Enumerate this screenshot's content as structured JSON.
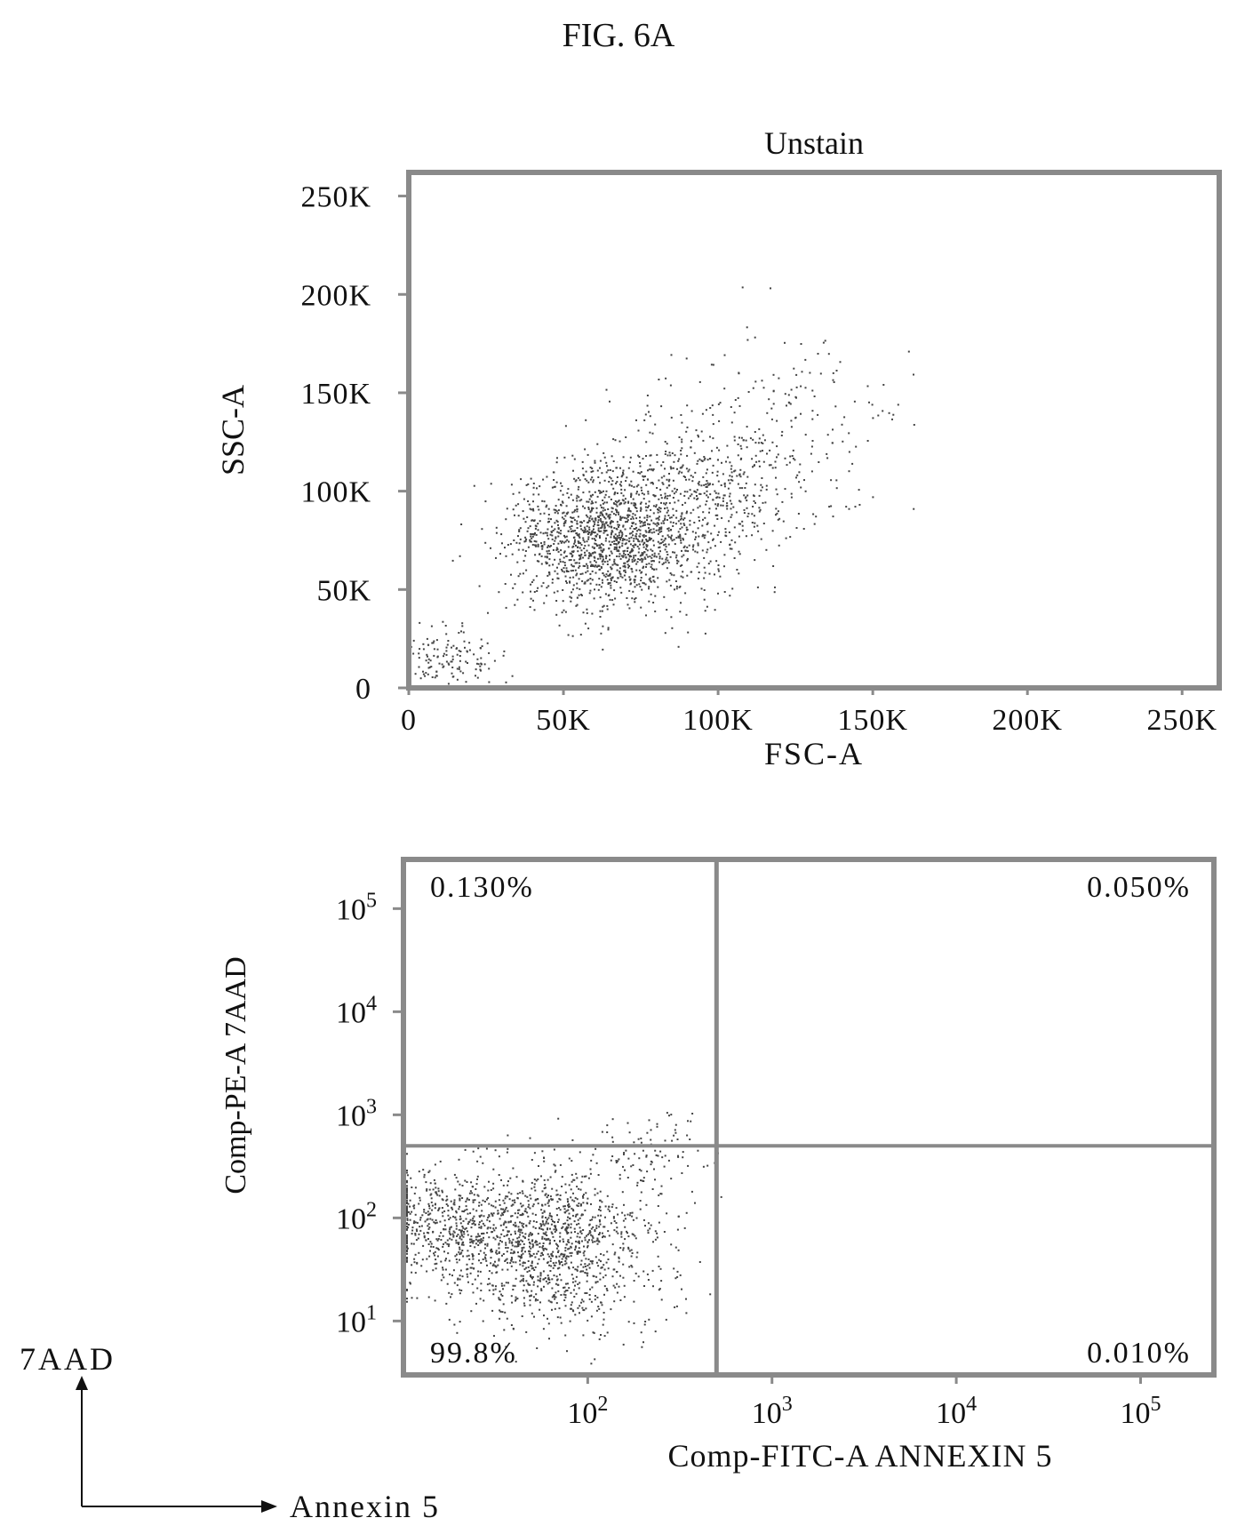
{
  "figure_title": "FIG. 6A",
  "colors": {
    "ink": "#111111",
    "dots": "#444444",
    "frame": "#8a8a8a"
  },
  "chart_data": [
    {
      "type": "scatter",
      "title": "Unstain",
      "xlabel": "FSC-A",
      "ylabel": "SSC-A",
      "xlim": [
        0,
        262000
      ],
      "ylim": [
        0,
        262000
      ],
      "x_ticks": [
        0,
        50000,
        100000,
        150000,
        200000,
        250000
      ],
      "x_tick_labels": [
        "0",
        "50K",
        "100K",
        "150K",
        "200K",
        "250K"
      ],
      "y_ticks": [
        0,
        50000,
        100000,
        150000,
        200000,
        250000
      ],
      "y_tick_labels": [
        "0",
        "50K",
        "100K",
        "150K",
        "200K",
        "250K"
      ],
      "grid": false,
      "series": [
        {
          "clusters": [
            {
              "cx": 65000,
              "cy": 75000,
              "sx": 17000,
              "sy": 17000,
              "n": 1500
            },
            {
              "cx": 95000,
              "cy": 105000,
              "sx": 20000,
              "sy": 17000,
              "n": 500
            },
            {
              "cx": 12000,
              "cy": 14000,
              "sx": 9000,
              "sy": 9000,
              "n": 150
            },
            {
              "cx": 120000,
              "cy": 145000,
              "sx": 22000,
              "sy": 22000,
              "n": 140
            }
          ]
        }
      ]
    },
    {
      "type": "scatter",
      "xlabel": "Comp-FITC-A ANNEXIN 5",
      "ylabel": "Comp-PE-A 7AAD",
      "xscale": "log",
      "yscale": "log",
      "xlim": [
        10,
        250000
      ],
      "ylim": [
        3,
        300000
      ],
      "x_ticks": [
        100,
        1000,
        10000,
        100000
      ],
      "y_ticks": [
        10,
        100,
        1000,
        10000,
        100000
      ],
      "tick_base": "10",
      "tick_exponents": [
        "2",
        "3",
        "4",
        "5"
      ],
      "y_tick_exponents": [
        "1",
        "2",
        "3",
        "4",
        "5"
      ],
      "grid": false,
      "quadrant_gate": {
        "x": 500,
        "y": 500
      },
      "quadrants": [
        {
          "position": "top-left",
          "label": "0.130%"
        },
        {
          "position": "top-right",
          "label": "0.050%"
        },
        {
          "position": "bottom-left",
          "label": "99.8%"
        },
        {
          "position": "bottom-right",
          "label": "0.010%"
        }
      ],
      "series": [
        {
          "log_clusters": [
            {
              "cx": 1.75,
              "cy": 1.75,
              "sx": 0.32,
              "sy": 0.38,
              "n": 1400
            },
            {
              "cx": 1.2,
              "cy": 2.0,
              "sx": 0.22,
              "sy": 0.25,
              "n": 350
            },
            {
              "cx": 2.35,
              "cy": 2.65,
              "sx": 0.18,
              "sy": 0.18,
              "n": 80
            }
          ]
        }
      ]
    }
  ],
  "corner_legend": {
    "y_label": "7AAD",
    "x_label": "Annexin 5"
  }
}
